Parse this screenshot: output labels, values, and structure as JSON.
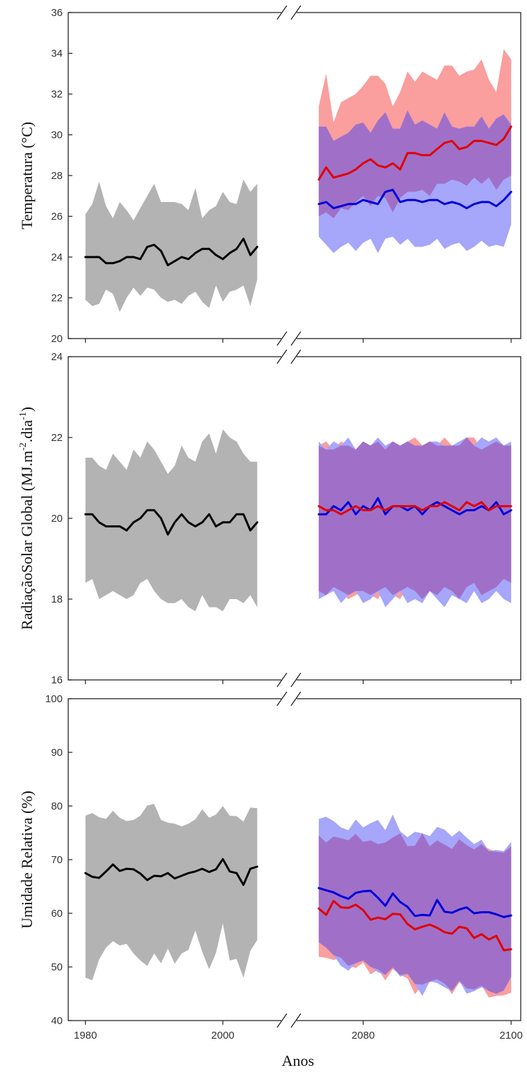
{
  "figure": {
    "xlabel": "Anos",
    "colors": {
      "historical_band": "#b3b3b3",
      "historical_line": "#000000",
      "red_band": "#fa9e9e",
      "blue_band": "#a6a6fa",
      "overlap_band": "#a070c8",
      "red_line": "#e00000",
      "blue_line": "#0000d8"
    }
  },
  "chart_data": [
    {
      "type": "line",
      "ylabel": "Temperatura (°C)",
      "ylim": [
        20,
        36
      ],
      "yticks": [
        20,
        22,
        24,
        26,
        28,
        30,
        32,
        34,
        36
      ],
      "xticks": [
        1980,
        2000,
        2080,
        2100
      ],
      "xticklabels": [
        "",
        "",
        "",
        ""
      ],
      "axis_break": [
        2006,
        2072
      ],
      "historical": {
        "x": [
          1980,
          1981,
          1982,
          1983,
          1984,
          1985,
          1986,
          1987,
          1988,
          1989,
          1990,
          1991,
          1992,
          1993,
          1994,
          1995,
          1996,
          1997,
          1998,
          1999,
          2000,
          2001,
          2002,
          2003,
          2004,
          2005
        ],
        "mean": [
          24.0,
          24.0,
          24.0,
          23.7,
          23.7,
          23.8,
          24.0,
          24.0,
          23.9,
          24.5,
          24.6,
          24.3,
          23.6,
          23.8,
          24.0,
          23.9,
          24.2,
          24.4,
          24.4,
          24.1,
          23.9,
          24.2,
          24.4,
          24.9,
          24.1,
          24.5
        ],
        "upper": [
          26.1,
          26.6,
          27.7,
          26.5,
          25.9,
          26.7,
          26.3,
          25.8,
          26.4,
          27.0,
          27.6,
          26.7,
          26.7,
          26.7,
          26.6,
          26.3,
          27.4,
          25.9,
          26.3,
          26.5,
          27.2,
          26.7,
          26.6,
          27.8,
          27.2,
          27.6
        ],
        "lower": [
          21.9,
          21.6,
          21.7,
          22.4,
          22.2,
          21.3,
          22.0,
          22.5,
          22.1,
          22.5,
          22.4,
          22.0,
          21.8,
          21.9,
          21.7,
          22.1,
          22.3,
          21.8,
          21.5,
          22.6,
          21.8,
          22.3,
          22.4,
          22.6,
          21.6,
          22.9
        ]
      },
      "series": [
        {
          "x": [
            2074,
            2075,
            2076,
            2077,
            2078,
            2079,
            2080,
            2081,
            2082,
            2083,
            2084,
            2085,
            2086,
            2087,
            2088,
            2089,
            2090,
            2091,
            2092,
            2093,
            2094,
            2095,
            2096,
            2097,
            2098,
            2099,
            2100
          ],
          "mean": [
            27.8,
            28.4,
            27.9,
            28.0,
            28.1,
            28.3,
            28.6,
            28.8,
            28.5,
            28.4,
            28.6,
            28.3,
            29.1,
            29.1,
            29.0,
            29.0,
            29.3,
            29.6,
            29.7,
            29.3,
            29.4,
            29.7,
            29.7,
            29.6,
            29.5,
            29.8,
            30.4
          ],
          "upper": [
            31.4,
            33.0,
            30.6,
            31.6,
            31.8,
            32.0,
            32.4,
            32.9,
            32.9,
            32.5,
            31.4,
            32.1,
            33.1,
            32.6,
            33.1,
            32.9,
            32.7,
            33.4,
            33.4,
            32.9,
            33.1,
            33.2,
            33.7,
            32.7,
            32.1,
            34.2,
            33.7
          ],
          "lower": [
            26.0,
            26.2,
            25.9,
            26.4,
            26.3,
            26.7,
            27.0,
            26.5,
            27.0,
            26.9,
            26.2,
            26.9,
            27.2,
            27.2,
            27.3,
            27.0,
            27.6,
            27.6,
            27.8,
            27.7,
            27.5,
            27.9,
            27.6,
            27.9,
            27.3,
            27.8,
            28.0
          ]
        },
        {
          "x": [
            2074,
            2075,
            2076,
            2077,
            2078,
            2079,
            2080,
            2081,
            2082,
            2083,
            2084,
            2085,
            2086,
            2087,
            2088,
            2089,
            2090,
            2091,
            2092,
            2093,
            2094,
            2095,
            2096,
            2097,
            2098,
            2099,
            2100
          ],
          "mean": [
            26.6,
            26.7,
            26.4,
            26.5,
            26.6,
            26.6,
            26.8,
            26.7,
            26.6,
            27.2,
            27.3,
            26.7,
            26.8,
            26.8,
            26.7,
            26.8,
            26.8,
            26.6,
            26.7,
            26.6,
            26.4,
            26.6,
            26.7,
            26.7,
            26.5,
            26.8,
            27.2
          ],
          "upper": [
            30.4,
            30.4,
            29.7,
            29.9,
            30.1,
            30.5,
            30.6,
            30.1,
            30.7,
            31.1,
            30.3,
            30.3,
            31.2,
            30.5,
            30.7,
            30.5,
            30.3,
            31.1,
            30.4,
            30.3,
            30.4,
            30.4,
            30.9,
            30.3,
            30.8,
            31.0,
            30.5
          ],
          "lower": [
            25.0,
            24.6,
            24.2,
            24.5,
            24.7,
            24.3,
            24.7,
            24.9,
            24.2,
            24.9,
            25.0,
            24.6,
            24.9,
            24.5,
            24.5,
            24.6,
            24.9,
            24.4,
            24.6,
            24.7,
            24.3,
            24.5,
            24.8,
            24.5,
            24.6,
            24.5,
            25.6
          ]
        }
      ]
    },
    {
      "type": "line",
      "ylabel": "RadiaçãoSolar Global (MJ.m-2.dia-1)",
      "ylim": [
        16,
        24
      ],
      "yticks": [
        16,
        18,
        20,
        22,
        24
      ],
      "xticks": [
        1980,
        2000,
        2080,
        2100
      ],
      "xticklabels": [
        "",
        "",
        "",
        ""
      ],
      "axis_break": [
        2006,
        2072
      ],
      "historical": {
        "x": [
          1980,
          1981,
          1982,
          1983,
          1984,
          1985,
          1986,
          1987,
          1988,
          1989,
          1990,
          1991,
          1992,
          1993,
          1994,
          1995,
          1996,
          1997,
          1998,
          1999,
          2000,
          2001,
          2002,
          2003,
          2004,
          2005
        ],
        "mean": [
          20.1,
          20.1,
          19.9,
          19.8,
          19.8,
          19.8,
          19.7,
          19.9,
          20.0,
          20.2,
          20.2,
          20.0,
          19.6,
          19.9,
          20.1,
          19.9,
          19.8,
          19.9,
          20.1,
          19.8,
          19.9,
          19.9,
          20.1,
          20.1,
          19.7,
          19.9
        ],
        "upper": [
          21.5,
          21.5,
          21.3,
          21.2,
          21.6,
          21.4,
          21.2,
          21.7,
          21.5,
          21.9,
          21.7,
          21.4,
          21.1,
          21.3,
          21.8,
          21.5,
          21.4,
          21.9,
          22.1,
          21.6,
          22.2,
          22.0,
          21.9,
          21.6,
          21.4,
          21.4
        ],
        "lower": [
          18.4,
          18.5,
          18.0,
          18.1,
          18.2,
          18.1,
          18.0,
          18.1,
          18.4,
          18.5,
          18.2,
          18.0,
          17.9,
          17.9,
          18.0,
          17.8,
          17.7,
          18.1,
          17.8,
          17.8,
          17.7,
          18.0,
          18.0,
          17.9,
          18.1,
          17.8
        ]
      },
      "series": [
        {
          "x": [
            2074,
            2075,
            2076,
            2077,
            2078,
            2079,
            2080,
            2081,
            2082,
            2083,
            2084,
            2085,
            2086,
            2087,
            2088,
            2089,
            2090,
            2091,
            2092,
            2093,
            2094,
            2095,
            2096,
            2097,
            2098,
            2099,
            2100
          ],
          "mean": [
            20.3,
            20.2,
            20.2,
            20.1,
            20.2,
            20.3,
            20.2,
            20.2,
            20.3,
            20.2,
            20.3,
            20.3,
            20.3,
            20.3,
            20.2,
            20.3,
            20.3,
            20.4,
            20.3,
            20.2,
            20.4,
            20.3,
            20.4,
            20.2,
            20.3,
            20.3,
            20.3
          ],
          "upper": [
            21.8,
            21.9,
            21.7,
            21.9,
            21.8,
            21.7,
            21.9,
            21.8,
            21.9,
            21.7,
            21.9,
            21.8,
            21.9,
            22.0,
            21.8,
            21.9,
            21.8,
            22.0,
            21.8,
            21.8,
            22.0,
            22.0,
            21.7,
            21.8,
            21.9,
            21.8,
            21.8
          ],
          "lower": [
            18.2,
            18.1,
            18.3,
            18.2,
            18.0,
            18.1,
            18.2,
            18.1,
            18.0,
            18.3,
            18.1,
            18.0,
            18.3,
            18.2,
            18.0,
            18.2,
            18.1,
            18.3,
            18.2,
            18.0,
            18.3,
            18.4,
            18.1,
            18.2,
            18.3,
            18.5,
            18.4
          ]
        },
        {
          "x": [
            2074,
            2075,
            2076,
            2077,
            2078,
            2079,
            2080,
            2081,
            2082,
            2083,
            2084,
            2085,
            2086,
            2087,
            2088,
            2089,
            2090,
            2091,
            2092,
            2093,
            2094,
            2095,
            2096,
            2097,
            2098,
            2099,
            2100
          ],
          "mean": [
            20.1,
            20.1,
            20.3,
            20.2,
            20.4,
            20.1,
            20.3,
            20.2,
            20.5,
            20.1,
            20.3,
            20.3,
            20.2,
            20.3,
            20.1,
            20.3,
            20.4,
            20.3,
            20.2,
            20.1,
            20.2,
            20.2,
            20.3,
            20.2,
            20.4,
            20.1,
            20.2
          ],
          "upper": [
            21.9,
            21.7,
            21.9,
            21.8,
            22.0,
            21.7,
            21.9,
            21.8,
            22.0,
            21.8,
            21.9,
            21.8,
            21.9,
            21.8,
            21.8,
            21.9,
            21.9,
            21.8,
            21.8,
            21.9,
            22.0,
            21.8,
            22.0,
            21.9,
            22.0,
            21.8,
            21.9
          ],
          "lower": [
            18.0,
            18.1,
            18.2,
            17.9,
            18.1,
            18.2,
            17.9,
            18.0,
            18.2,
            17.8,
            18.0,
            18.2,
            17.9,
            18.0,
            17.9,
            18.2,
            18.0,
            17.8,
            18.1,
            18.0,
            17.9,
            18.2,
            17.9,
            18.0,
            18.2,
            18.0,
            17.9
          ]
        }
      ]
    },
    {
      "type": "line",
      "ylabel": "Umidade Relativa (%)",
      "ylim": [
        40,
        100
      ],
      "yticks": [
        40,
        50,
        60,
        70,
        80,
        90,
        100
      ],
      "xticks": [
        1980,
        2000,
        2080,
        2100
      ],
      "xticklabels": [
        "1980",
        "2000",
        "2080",
        "2100"
      ],
      "axis_break": [
        2006,
        2072
      ],
      "historical": {
        "x": [
          1980,
          1981,
          1982,
          1983,
          1984,
          1985,
          1986,
          1987,
          1988,
          1989,
          1990,
          1991,
          1992,
          1993,
          1994,
          1995,
          1996,
          1997,
          1998,
          1999,
          2000,
          2001,
          2002,
          2003,
          2004,
          2005
        ],
        "mean": [
          67.5,
          66.8,
          66.6,
          67.8,
          69.1,
          67.9,
          68.3,
          68.2,
          67.4,
          66.2,
          67.0,
          66.9,
          67.5,
          66.5,
          67.0,
          67.5,
          67.8,
          68.3,
          67.7,
          68.2,
          70.1,
          67.8,
          67.5,
          65.3,
          68.3,
          68.7
        ],
        "upper": [
          78.2,
          78.7,
          77.9,
          77.6,
          79.1,
          77.8,
          77.2,
          77.4,
          78.2,
          80.1,
          80.4,
          77.4,
          76.9,
          76.7,
          76.2,
          76.7,
          77.5,
          79.4,
          77.8,
          78.4,
          80.0,
          78.2,
          78.1,
          77.1,
          79.7,
          79.6
        ],
        "lower": [
          48.0,
          47.5,
          51.4,
          53.6,
          54.8,
          54.0,
          54.3,
          52.5,
          51.2,
          50.2,
          52.5,
          50.7,
          53.4,
          50.6,
          52.5,
          53.2,
          56.8,
          52.8,
          49.6,
          52.6,
          58.1,
          51.2,
          51.5,
          48.0,
          53.0,
          55.0
        ]
      },
      "series": [
        {
          "x": [
            2074,
            2075,
            2076,
            2077,
            2078,
            2079,
            2080,
            2081,
            2082,
            2083,
            2084,
            2085,
            2086,
            2087,
            2088,
            2089,
            2090,
            2091,
            2092,
            2093,
            2094,
            2095,
            2096,
            2097,
            2098,
            2099,
            2100
          ],
          "mean": [
            60.9,
            59.7,
            62.3,
            61.1,
            61.0,
            61.6,
            60.6,
            58.8,
            59.2,
            58.9,
            59.9,
            59.8,
            58.0,
            57.0,
            57.5,
            57.9,
            57.3,
            56.5,
            56.2,
            57.5,
            57.2,
            55.4,
            56.1,
            55.1,
            55.8,
            53.1,
            53.3
          ],
          "upper": [
            74.5,
            73.2,
            74.3,
            74.0,
            73.6,
            74.8,
            73.3,
            73.6,
            72.9,
            73.2,
            74.1,
            74.9,
            72.5,
            72.6,
            75.0,
            72.5,
            73.6,
            72.8,
            72.0,
            73.8,
            72.7,
            71.9,
            72.9,
            72.0,
            71.5,
            71.3,
            72.5
          ],
          "lower": [
            51.9,
            51.7,
            51.3,
            51.7,
            50.2,
            49.8,
            50.8,
            48.6,
            49.5,
            47.5,
            49.6,
            48.5,
            47.9,
            44.9,
            46.7,
            47.1,
            47.7,
            46.9,
            44.9,
            47.1,
            46.0,
            45.8,
            46.5,
            44.3,
            44.6,
            44.7,
            45.2
          ]
        },
        {
          "x": [
            2074,
            2075,
            2076,
            2077,
            2078,
            2079,
            2080,
            2081,
            2082,
            2083,
            2084,
            2085,
            2086,
            2087,
            2088,
            2089,
            2090,
            2091,
            2092,
            2093,
            2094,
            2095,
            2096,
            2097,
            2098,
            2099,
            2100
          ],
          "mean": [
            64.7,
            64.3,
            63.9,
            63.2,
            62.7,
            63.8,
            64.1,
            64.2,
            62.9,
            61.4,
            63.7,
            62.1,
            61.2,
            59.5,
            59.7,
            59.6,
            62.5,
            60.3,
            60.1,
            60.7,
            61.1,
            60.0,
            60.2,
            60.2,
            59.8,
            59.3,
            59.6
          ],
          "upper": [
            77.6,
            78.0,
            77.2,
            76.0,
            75.5,
            77.5,
            76.0,
            76.8,
            77.4,
            75.5,
            78.4,
            75.3,
            74.2,
            75.2,
            74.9,
            74.4,
            76.1,
            75.6,
            74.3,
            75.4,
            74.1,
            72.9,
            73.7,
            71.6,
            71.8,
            71.6,
            73.3
          ],
          "lower": [
            54.6,
            53.6,
            52.2,
            50.2,
            49.3,
            50.7,
            51.2,
            50.0,
            49.0,
            48.5,
            49.9,
            48.2,
            48.7,
            46.8,
            44.6,
            47.3,
            47.0,
            46.2,
            45.5,
            47.4,
            45.0,
            45.5,
            46.2,
            45.5,
            45.0,
            45.6,
            48.1
          ]
        }
      ]
    }
  ]
}
